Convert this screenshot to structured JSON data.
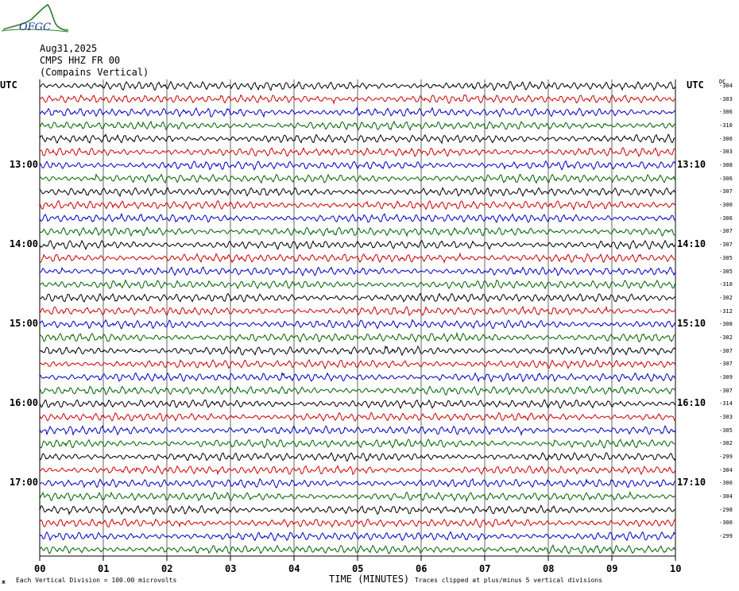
{
  "logo_text": "OFGC",
  "header": {
    "date": "Aug31,2025",
    "channel": "CMPS HHZ FR 00",
    "location": "(Compains Vertical)"
  },
  "utc_left": "UTC",
  "utc_right": "UTC",
  "dc_header": "DC",
  "left_time_labels": [
    {
      "row": 6,
      "text": "13:00"
    },
    {
      "row": 12,
      "text": "14:00"
    },
    {
      "row": 18,
      "text": "15:00"
    },
    {
      "row": 24,
      "text": "16:00"
    },
    {
      "row": 30,
      "text": "17:00"
    }
  ],
  "right_time_labels": [
    {
      "row": 6,
      "text": "13:10"
    },
    {
      "row": 12,
      "text": "14:10"
    },
    {
      "row": 18,
      "text": "15:10"
    },
    {
      "row": 24,
      "text": "16:10"
    },
    {
      "row": 30,
      "text": "17:10"
    }
  ],
  "footer": {
    "vertical_division": "Each Vertical Division =  100.00 microvolts",
    "xlabel": "TIME (MINUTES)",
    "clip_note": "Traces clipped at plus/minus 5 vertical divisions"
  },
  "colors": {
    "trace_cycle": [
      "#000000",
      "#d00000",
      "#0000c8",
      "#006400"
    ],
    "grid": "#000000"
  },
  "chart_data": {
    "type": "helicorder",
    "x_ticks": [
      "00",
      "01",
      "02",
      "03",
      "04",
      "05",
      "06",
      "07",
      "08",
      "09",
      "10"
    ],
    "xlim": [
      0,
      10
    ],
    "xlabel": "TIME (MINUTES)",
    "trace_minutes": 10,
    "rows": 36,
    "dc_offsets": [
      "-304",
      "-303",
      "-306",
      "-310",
      "-306",
      "-303",
      "-308",
      "-306",
      "-307",
      "-300",
      "-306",
      "-307",
      "-307",
      "-305",
      "-305",
      "-310",
      "-302",
      "-312",
      "-308",
      "-302",
      "-307",
      "-307",
      "-309",
      "-307",
      "-314",
      "-303",
      "-305",
      "-302",
      "-299",
      "-304",
      "-300",
      "-304",
      "-298",
      "-300",
      "-299"
    ]
  }
}
